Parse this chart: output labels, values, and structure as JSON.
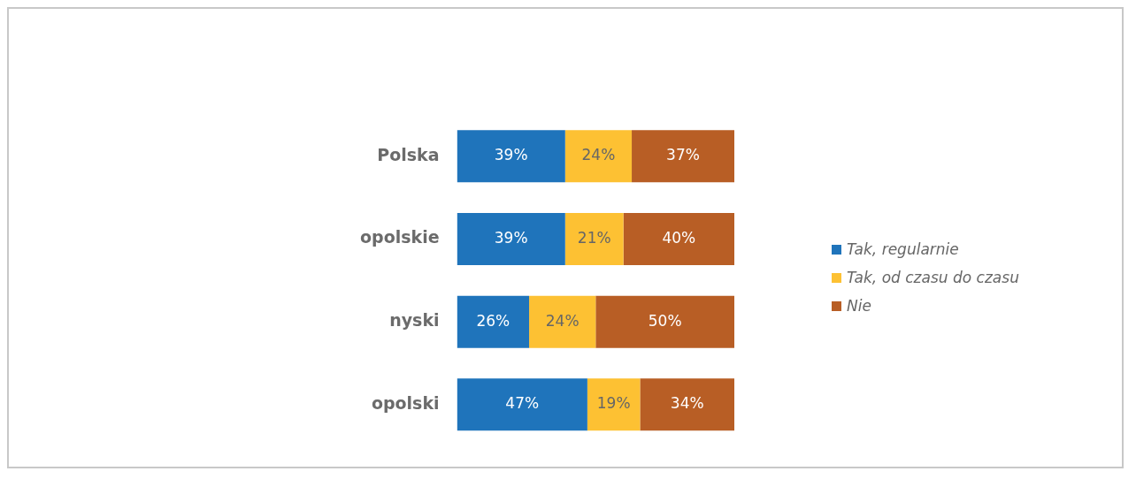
{
  "chart_data": {
    "type": "bar",
    "orientation": "horizontal",
    "stacked": true,
    "categories": [
      "Polska",
      "opolskie",
      "nyski",
      "opolski"
    ],
    "series": [
      {
        "name": "Tak, regularnie",
        "color": "#1f74bb",
        "values": [
          39,
          39,
          26,
          47
        ],
        "value_labels": [
          "39%",
          "39%",
          "26%",
          "47%"
        ]
      },
      {
        "name": "Tak, od czasu do czasu",
        "color": "#fdc133",
        "values": [
          24,
          21,
          24,
          19
        ],
        "value_labels": [
          "24%",
          "21%",
          "24%",
          "19%"
        ]
      },
      {
        "name": "Nie",
        "color": "#b85e25",
        "values": [
          37,
          40,
          50,
          34
        ],
        "value_labels": [
          "37%",
          "40%",
          "50%",
          "34%"
        ]
      }
    ],
    "legend": "right",
    "grid": false,
    "tick_labels": "y"
  }
}
